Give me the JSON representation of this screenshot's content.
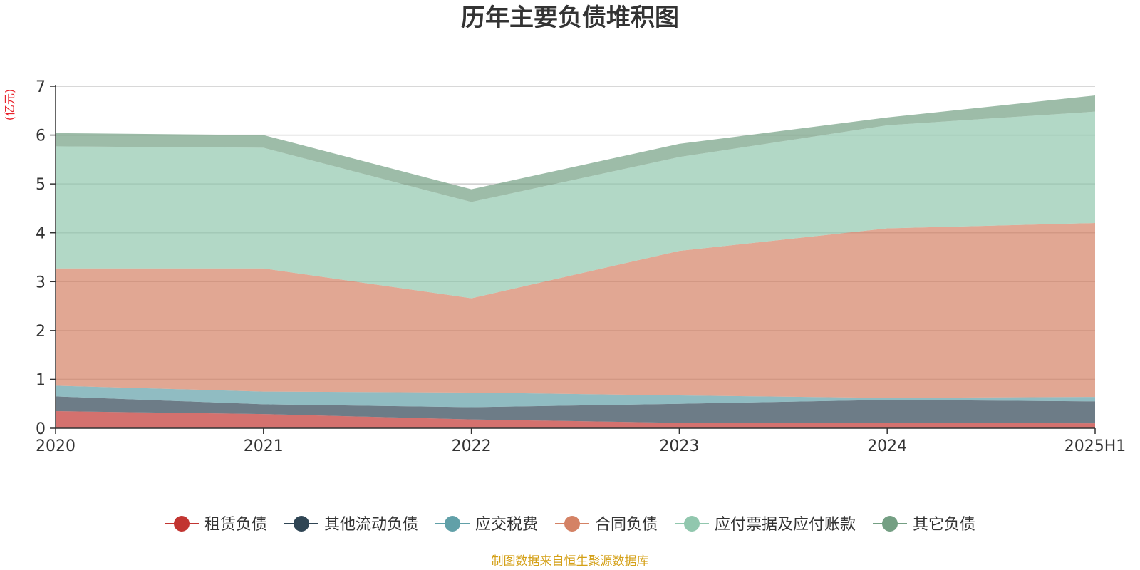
{
  "title": "历年主要负债堆积图",
  "unit_label": "(亿元)",
  "source": "制图数据来自恒生聚源数据库",
  "chart_data": {
    "type": "area",
    "stacked": true,
    "title": "历年主要负债堆积图",
    "ylabel": "(亿元)",
    "categories": [
      "2020",
      "2021",
      "2022",
      "2023",
      "2024",
      "2025H1"
    ],
    "ylim": [
      0,
      7
    ],
    "yticks": [
      0,
      1,
      2,
      3,
      4,
      5,
      6,
      7
    ],
    "grid": true,
    "legend_position": "bottom",
    "series": [
      {
        "name": "租赁负债",
        "color": "#c23531",
        "values": [
          0.35,
          0.29,
          0.18,
          0.11,
          0.11,
          0.1
        ]
      },
      {
        "name": "其他流动负债",
        "color": "#2f4554",
        "values": [
          0.3,
          0.2,
          0.25,
          0.39,
          0.47,
          0.45
        ]
      },
      {
        "name": "应交税费",
        "color": "#61a0a8",
        "values": [
          0.22,
          0.26,
          0.3,
          0.17,
          0.04,
          0.09
        ]
      },
      {
        "name": "合同负债",
        "color": "#d48265",
        "values": [
          2.4,
          2.52,
          1.93,
          2.96,
          3.47,
          3.56
        ]
      },
      {
        "name": "应付票据及应付账款",
        "color": "#91c7ae",
        "values": [
          2.5,
          2.47,
          1.97,
          1.92,
          2.11,
          2.28
        ]
      },
      {
        "name": "其它负债",
        "color": "#749f83",
        "values": [
          0.27,
          0.26,
          0.26,
          0.27,
          0.16,
          0.33
        ]
      }
    ]
  }
}
